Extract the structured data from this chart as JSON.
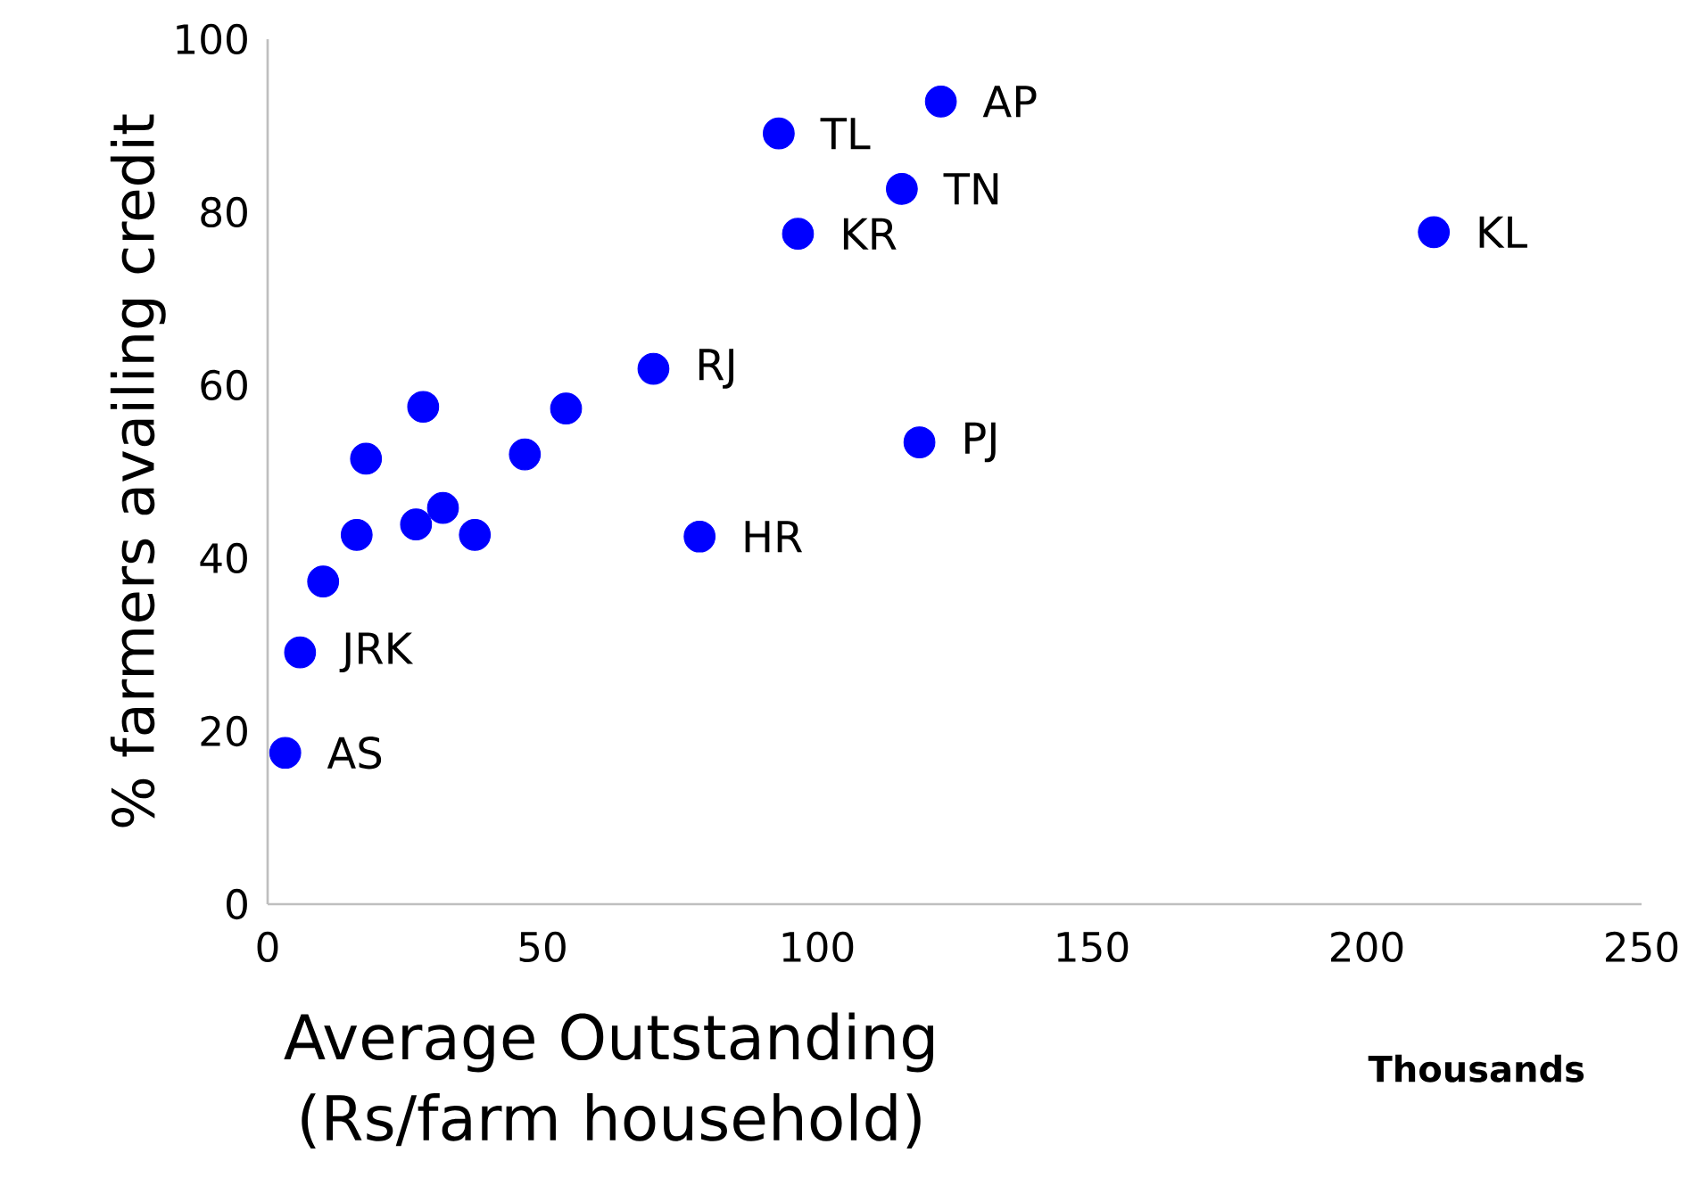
{
  "chart_data": {
    "type": "scatter",
    "xlabel": "Average Outstanding (Rs/farm household)",
    "ylabel": "% farmers availing credit",
    "x": [
      3.2,
      5.9,
      10.1,
      16.2,
      17.9,
      27.0,
      28.3,
      31.9,
      37.7,
      46.8,
      54.3,
      70.2,
      78.6,
      93.0,
      96.5,
      115.4,
      122.5,
      118.6,
      212.2
    ],
    "values": [
      17.5,
      29.1,
      37.3,
      42.7,
      51.5,
      43.9,
      57.5,
      45.8,
      42.7,
      52.0,
      57.3,
      61.9,
      42.5,
      89.1,
      77.5,
      82.7,
      92.8,
      53.4,
      77.7
    ],
    "color": "#0000ff",
    "marker": "circle",
    "grid": false,
    "xlim": [
      0,
      250
    ],
    "ylim": [
      0,
      100
    ],
    "xticks": [
      0,
      50,
      100,
      150,
      200,
      250
    ],
    "yticks": [
      0,
      20,
      40,
      60,
      80,
      100
    ],
    "annotations": [
      {
        "text": "AS",
        "x": 3.2,
        "y": 17.5
      },
      {
        "text": "JRK",
        "x": 5.9,
        "y": 29.1
      },
      {
        "text": "RJ",
        "x": 70.2,
        "y": 61.9
      },
      {
        "text": "HR",
        "x": 78.6,
        "y": 42.5
      },
      {
        "text": "TL",
        "x": 93.0,
        "y": 89.1
      },
      {
        "text": "KR",
        "x": 96.5,
        "y": 77.5
      },
      {
        "text": "TN",
        "x": 115.4,
        "y": 82.7
      },
      {
        "text": "AP",
        "x": 122.5,
        "y": 92.8
      },
      {
        "text": "PJ",
        "x": 118.6,
        "y": 53.4
      },
      {
        "text": "KL",
        "x": 212.2,
        "y": 77.7
      },
      "Thousands"
    ]
  }
}
